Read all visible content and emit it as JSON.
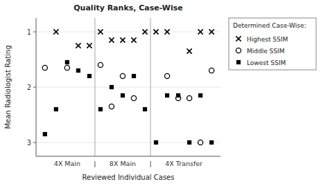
{
  "chart_data": {
    "type": "scatter",
    "title": "Quality Ranks, Case-Wise",
    "xlabel": "Reviewed Individual Cases",
    "ylabel": "Mean Radiologist Rating",
    "xlim": [
      0.2,
      16.8
    ],
    "xticks": [
      {
        "value": 3.0,
        "label": "4X Main"
      },
      {
        "value": 5.5,
        "label": "|"
      },
      {
        "value": 8.0,
        "label": "8X Main"
      },
      {
        "value": 10.5,
        "label": "|"
      },
      {
        "value": 13.5,
        "label": "4X Transfer"
      }
    ],
    "ylim": [
      3.25,
      0.75
    ],
    "yticks": [
      1,
      2,
      3
    ],
    "vlines": [
      5.5,
      10.5
    ],
    "legend": "right",
    "legend_title": "Determined Case-Wise:",
    "series": [
      {
        "name": "Highest SSIM",
        "marker": "x",
        "color": "black",
        "x": [
          2,
          4,
          5,
          6,
          7,
          8,
          9,
          10,
          11,
          12,
          14,
          15,
          16
        ],
        "values": [
          1.0,
          1.25,
          1.25,
          1.0,
          1.15,
          1.15,
          1.15,
          1.0,
          1.0,
          1.0,
          1.35,
          1.0,
          1.0
        ]
      },
      {
        "name": "Middle SSIM",
        "marker": "circle-open",
        "color": "black",
        "x": [
          1,
          3,
          6,
          7,
          8,
          9,
          12,
          13,
          14,
          15,
          16
        ],
        "values": [
          1.65,
          1.65,
          1.6,
          2.35,
          1.8,
          2.2,
          1.8,
          2.2,
          2.2,
          3.0,
          1.7
        ]
      },
      {
        "name": "Lowest SSIM",
        "marker": "square",
        "color": "black",
        "x": [
          1,
          2,
          3,
          4,
          5,
          6,
          7,
          8,
          9,
          10,
          11,
          12,
          13,
          14,
          15,
          16
        ],
        "values": [
          2.85,
          2.4,
          1.55,
          1.7,
          1.8,
          2.4,
          2.0,
          2.15,
          1.8,
          2.4,
          3.0,
          2.15,
          2.15,
          3.0,
          2.15,
          3.0
        ]
      }
    ]
  }
}
